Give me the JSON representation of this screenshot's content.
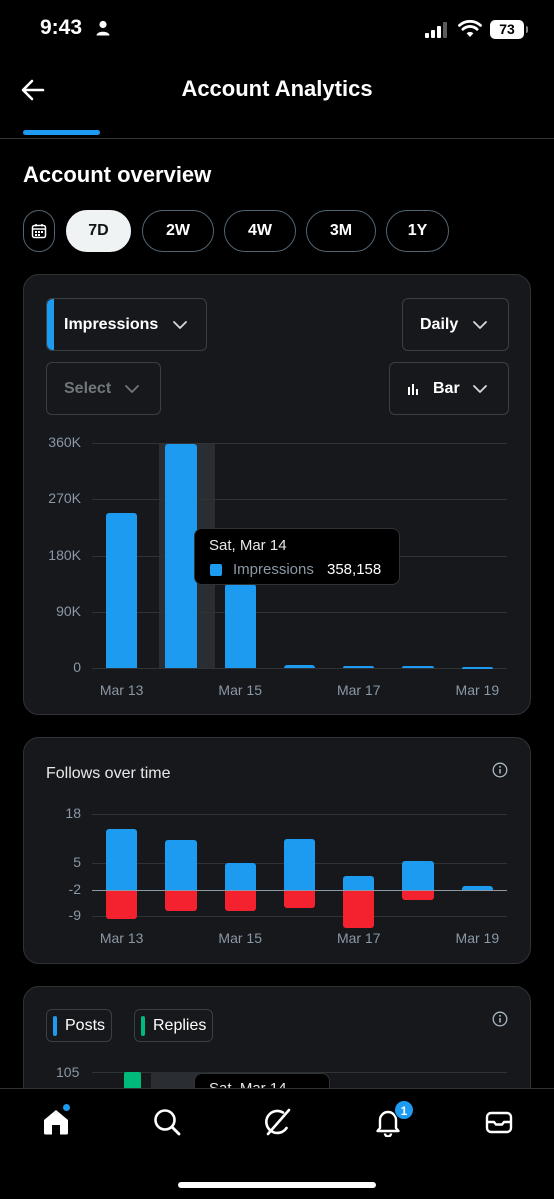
{
  "status_bar": {
    "time": "9:43",
    "battery": "73"
  },
  "header": {
    "title": "Account Analytics"
  },
  "overview": {
    "title": "Account overview",
    "ranges": [
      "7D",
      "2W",
      "4W",
      "3M",
      "1Y"
    ],
    "active_range": "7D"
  },
  "impressions_card": {
    "metric_select": "Impressions",
    "interval_select": "Daily",
    "compare_placeholder": "Select",
    "chart_type_select": "Bar",
    "tooltip": {
      "date": "Sat, Mar 14",
      "series": "Impressions",
      "value": "358,158"
    }
  },
  "follows_card": {
    "title": "Follows over time"
  },
  "posts_card": {
    "legend": [
      "Posts",
      "Replies"
    ],
    "y_top": "105",
    "tooltip_date": "Sat, Mar 14"
  },
  "nav": {
    "notification_count": "1"
  },
  "colors": {
    "accent": "#1d9bf0",
    "negative": "#f4212e",
    "replies": "#00ba7c",
    "card": "#16181c"
  },
  "chart_data": [
    {
      "type": "bar",
      "title": "",
      "categories": [
        "Mar 13",
        "Mar 14",
        "Mar 15",
        "Mar 16",
        "Mar 17",
        "Mar 18",
        "Mar 19"
      ],
      "x_tick_labels": [
        "Mar 13",
        "Mar 15",
        "Mar 17",
        "Mar 19"
      ],
      "series": [
        {
          "name": "Impressions",
          "values": [
            248000,
            358158,
            135000,
            5000,
            3000,
            3000,
            2000
          ]
        }
      ],
      "y_ticks": [
        "360K",
        "270K",
        "180K",
        "90K",
        "0"
      ],
      "ylim": [
        0,
        360000
      ],
      "grid": true
    },
    {
      "type": "bar",
      "title": "Follows over time",
      "categories": [
        "Mar 13",
        "Mar 14",
        "Mar 15",
        "Mar 16",
        "Mar 17",
        "Mar 18",
        "Mar 19"
      ],
      "x_tick_labels": [
        "Mar 13",
        "Mar 15",
        "Mar 17",
        "Mar 19"
      ],
      "series": [
        {
          "values": [
            16,
            13,
            7,
            13.5,
            3.5,
            7.5,
            1
          ]
        },
        {
          "values": [
            -7.5,
            -5.5,
            -5.5,
            -4.5,
            -10,
            -2.5,
            0
          ]
        }
      ],
      "y_ticks": [
        "18",
        "5",
        "-2",
        "-9"
      ],
      "ylim": [
        -9,
        18
      ],
      "grid": true
    }
  ]
}
